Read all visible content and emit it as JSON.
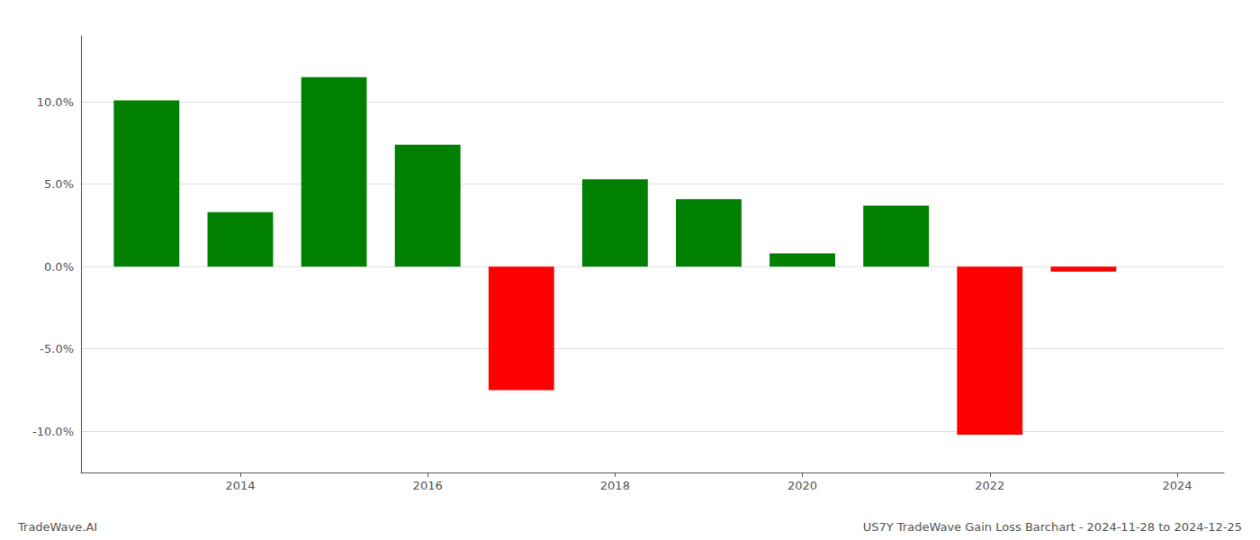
{
  "chart_data": {
    "type": "bar",
    "x": [
      2013,
      2014,
      2015,
      2016,
      2017,
      2018,
      2019,
      2020,
      2021,
      2022,
      2023
    ],
    "values": [
      10.1,
      3.3,
      11.5,
      7.4,
      -7.5,
      5.3,
      4.1,
      0.8,
      3.7,
      -10.2,
      -0.3
    ],
    "colors": [
      "#008000",
      "#008000",
      "#008000",
      "#008000",
      "#ff0000",
      "#008000",
      "#008000",
      "#008000",
      "#008000",
      "#ff0000",
      "#ff0000"
    ],
    "xlim": [
      2012.3,
      2024.5
    ],
    "xticks": [
      2014,
      2016,
      2018,
      2020,
      2022,
      2024
    ],
    "ylim": [
      -12.5,
      14.0
    ],
    "yticks": [
      {
        "value": -10.0,
        "label": "-10.0%"
      },
      {
        "value": -5.0,
        "label": "-5.0%"
      },
      {
        "value": 0.0,
        "label": "0.0%"
      },
      {
        "value": 5.0,
        "label": "5.0%"
      },
      {
        "value": 10.0,
        "label": "10.0%"
      }
    ],
    "grid": true,
    "annotations": [
      "TradeWave.AI",
      "US7Y TradeWave Gain Loss Barchart - 2024-11-28 to 2024-12-25"
    ]
  }
}
